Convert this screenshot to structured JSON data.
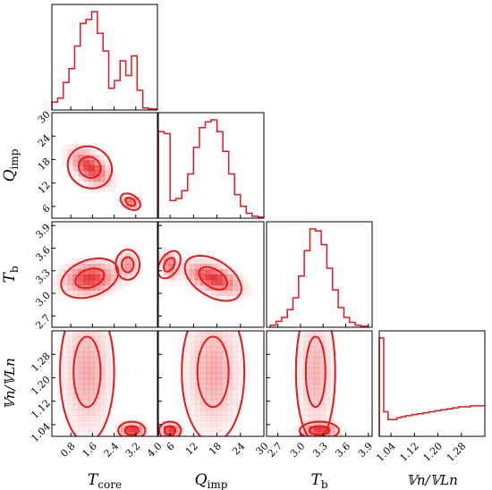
{
  "chart_data": {
    "type": "corner",
    "color": "#e31a1c",
    "parameters": [
      {
        "label_main": "T",
        "label_sub": "core",
        "ticks": [
          "0.8",
          "1.6",
          "2.4",
          "3.2",
          "4.0"
        ],
        "range": [
          0.1,
          4.0
        ]
      },
      {
        "label_main": "Q",
        "label_sub": "imp",
        "ticks": [
          "6",
          "12",
          "18",
          "24",
          "30"
        ],
        "range": [
          3,
          30
        ]
      },
      {
        "label_main": "T",
        "label_sub": "b",
        "ticks": [
          "2.7",
          "3.0",
          "3.3",
          "3.6",
          "3.9"
        ],
        "range": [
          2.55,
          3.95
        ]
      },
      {
        "label_text": "𝕍n/𝕍Ln",
        "ticks": [
          "1.04",
          "1.12",
          "1.20",
          "1.28"
        ],
        "range": [
          1.0,
          1.36
        ]
      }
    ],
    "histograms": [
      {
        "param": "T_core",
        "bin_edges": [
          0.1,
          0.31,
          0.52,
          0.73,
          0.94,
          1.15,
          1.36,
          1.57,
          1.78,
          1.99,
          2.2,
          2.41,
          2.62,
          2.83,
          3.04,
          3.25,
          3.46,
          3.67,
          4.0
        ],
        "counts": [
          0.08,
          0.12,
          0.28,
          0.42,
          0.65,
          0.88,
          0.92,
          1.0,
          0.78,
          0.6,
          0.22,
          0.3,
          0.5,
          0.35,
          0.55,
          0.2,
          0.02,
          0.01
        ]
      },
      {
        "param": "Q_imp",
        "bin_edges": [
          3,
          4.5,
          6,
          7.5,
          9,
          10.5,
          12,
          13.5,
          15,
          16.5,
          18,
          19.5,
          21,
          22.5,
          24,
          25.5,
          27,
          28.5,
          30
        ],
        "counts": [
          0.88,
          0.86,
          0.18,
          0.2,
          0.28,
          0.45,
          0.72,
          0.92,
          0.98,
          1.0,
          0.88,
          0.68,
          0.45,
          0.24,
          0.12,
          0.05,
          0.02,
          0.01
        ]
      },
      {
        "param": "T_b",
        "bin_edges": [
          2.6,
          2.675,
          2.75,
          2.825,
          2.9,
          2.975,
          3.05,
          3.125,
          3.2,
          3.275,
          3.35,
          3.425,
          3.5,
          3.575,
          3.65,
          3.725,
          3.8,
          3.9
        ],
        "counts": [
          0.02,
          0.06,
          0.1,
          0.18,
          0.3,
          0.52,
          0.78,
          1.0,
          0.98,
          0.84,
          0.6,
          0.38,
          0.2,
          0.1,
          0.05,
          0.02,
          0.01
        ]
      },
      {
        "param": "V_ratio",
        "bin_edges": [
          1.0,
          1.015,
          1.03,
          1.045,
          1.06,
          1.075,
          1.09,
          1.11,
          1.13,
          1.15,
          1.17,
          1.19,
          1.21,
          1.23,
          1.25,
          1.27,
          1.29,
          1.31,
          1.33,
          1.36
        ],
        "counts": [
          1.0,
          0.25,
          0.17,
          0.17,
          0.19,
          0.2,
          0.21,
          0.22,
          0.23,
          0.24,
          0.25,
          0.26,
          0.27,
          0.28,
          0.29,
          0.3,
          0.3,
          0.31,
          0.31
        ]
      }
    ],
    "panels_2d": [
      {
        "row": 1,
        "col": 0,
        "pair": [
          "T_core",
          "Q_imp"
        ],
        "peaks": [
          {
            "x": 1.5,
            "y": 16,
            "sx": 0.42,
            "sy": 2.6,
            "rho": -0.55,
            "w": 1.0
          },
          {
            "x": 3.0,
            "y": 7.2,
            "sx": 0.2,
            "sy": 0.9,
            "rho": -0.2,
            "w": 0.8
          }
        ]
      },
      {
        "row": 2,
        "col": 0,
        "pair": [
          "T_core",
          "T_b"
        ],
        "peaks": [
          {
            "x": 1.5,
            "y": 3.2,
            "sx": 0.55,
            "sy": 0.12,
            "rho": 0.1,
            "w": 1.0
          },
          {
            "x": 2.9,
            "y": 3.38,
            "sx": 0.22,
            "sy": 0.1,
            "rho": 0.0,
            "w": 0.5
          }
        ]
      },
      {
        "row": 2,
        "col": 1,
        "pair": [
          "Q_imp",
          "T_b"
        ],
        "peaks": [
          {
            "x": 17,
            "y": 3.2,
            "sx": 4.0,
            "sy": 0.12,
            "rho": -0.5,
            "w": 1.0
          },
          {
            "x": 5.8,
            "y": 3.38,
            "sx": 1.2,
            "sy": 0.1,
            "rho": -0.3,
            "w": 0.7
          }
        ]
      },
      {
        "row": 3,
        "col": 0,
        "pair": [
          "T_core",
          "V_ratio"
        ],
        "peaks": [
          {
            "x": 1.4,
            "y": 1.22,
            "sx": 0.5,
            "sy": 0.12,
            "rho": 0.0,
            "w": 0.35
          },
          {
            "x": 3.05,
            "y": 1.02,
            "sx": 0.25,
            "sy": 0.015,
            "rho": 0.0,
            "w": 1.0
          }
        ]
      },
      {
        "row": 3,
        "col": 1,
        "pair": [
          "Q_imp",
          "V_ratio"
        ],
        "peaks": [
          {
            "x": 17,
            "y": 1.22,
            "sx": 4.0,
            "sy": 0.12,
            "rho": 0.0,
            "w": 0.35
          },
          {
            "x": 6,
            "y": 1.02,
            "sx": 1.4,
            "sy": 0.015,
            "rho": 0.0,
            "w": 1.0
          }
        ]
      },
      {
        "row": 3,
        "col": 2,
        "pair": [
          "T_b",
          "V_ratio"
        ],
        "peaks": [
          {
            "x": 3.2,
            "y": 1.22,
            "sx": 0.13,
            "sy": 0.12,
            "rho": 0.0,
            "w": 0.35
          },
          {
            "x": 3.25,
            "y": 1.02,
            "sx": 0.13,
            "sy": 0.015,
            "rho": 0.0,
            "w": 1.0
          }
        ]
      }
    ]
  }
}
